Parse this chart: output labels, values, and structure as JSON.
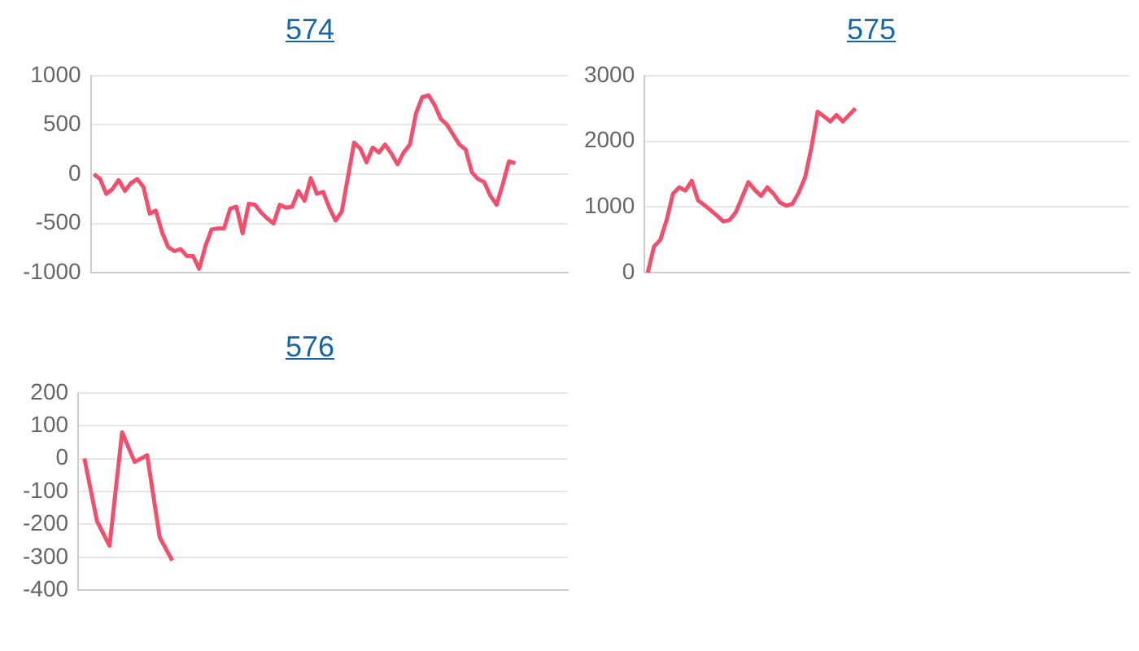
{
  "chart_data": [
    {
      "type": "line",
      "title": "574",
      "categories": [
        null,
        null,
        null,
        null,
        null,
        null,
        null,
        null,
        null,
        null,
        null,
        null,
        null,
        null,
        null,
        null,
        null,
        null,
        null,
        null,
        null,
        null,
        null,
        null,
        null,
        null,
        null,
        null,
        null,
        null,
        null,
        null,
        null,
        null,
        null,
        null,
        null,
        null,
        null,
        null,
        null,
        null,
        null,
        null,
        null,
        null,
        null,
        null,
        null,
        null,
        null,
        null,
        null,
        null,
        null,
        null,
        null,
        null,
        null,
        null,
        null,
        null,
        null,
        null,
        null,
        null,
        null,
        null,
        null,
        null,
        null,
        null,
        null,
        null,
        null,
        null,
        null
      ],
      "series": [
        {
          "color": "#f0506e",
          "values": [
            0,
            -50,
            -200,
            -150,
            -60,
            -170,
            -90,
            -50,
            -130,
            -400,
            -370,
            -590,
            -740,
            -780,
            -760,
            -830,
            -830,
            -960,
            -730,
            -560,
            -550,
            -550,
            -350,
            -330,
            -600,
            -300,
            -310,
            -390,
            -450,
            -500,
            -310,
            -340,
            -330,
            -170,
            -270,
            -40,
            -200,
            -180,
            -340,
            -470,
            -380,
            -30,
            320,
            260,
            120,
            270,
            220,
            300,
            210,
            100,
            220,
            300,
            620,
            780,
            800,
            700,
            560,
            500,
            400,
            300,
            250,
            20,
            -50,
            -80,
            -220,
            -310,
            -100,
            130,
            110,
            null,
            null,
            null,
            null,
            null,
            null,
            null,
            null
          ]
        }
      ],
      "ylim": [
        -1000,
        1000
      ],
      "yticks": [
        -1000,
        -500,
        0,
        500,
        1000
      ],
      "grid": "y",
      "tick_labels": "y",
      "marker": "none",
      "line_style": "solid"
    },
    {
      "type": "line",
      "title": "575",
      "categories": [
        null,
        null,
        null,
        null,
        null,
        null,
        null,
        null,
        null,
        null,
        null,
        null,
        null,
        null,
        null,
        null,
        null,
        null,
        null,
        null,
        null,
        null,
        null,
        null,
        null,
        null,
        null,
        null,
        null,
        null,
        null,
        null,
        null,
        null,
        null,
        null,
        null,
        null,
        null,
        null,
        null,
        null,
        null,
        null,
        null,
        null,
        null,
        null,
        null,
        null,
        null,
        null,
        null,
        null,
        null,
        null,
        null,
        null,
        null,
        null,
        null,
        null,
        null,
        null,
        null,
        null,
        null,
        null,
        null,
        null,
        null,
        null,
        null,
        null,
        null,
        null,
        null
      ],
      "series": [
        {
          "color": "#f0506e",
          "values": [
            0,
            400,
            500,
            800,
            1200,
            1300,
            1250,
            1400,
            1100,
            1030,
            950,
            870,
            780,
            800,
            920,
            1150,
            1380,
            1260,
            1170,
            1300,
            1200,
            1070,
            1020,
            1050,
            1220,
            1450,
            1900,
            2450,
            2380,
            2300,
            2400,
            2300,
            2400,
            2500,
            null,
            null,
            null,
            null,
            null,
            null,
            null,
            null,
            null,
            null,
            null,
            null,
            null,
            null,
            null,
            null,
            null,
            null,
            null,
            null,
            null,
            null,
            null,
            null,
            null,
            null,
            null,
            null,
            null,
            null,
            null,
            null,
            null,
            null,
            null,
            null,
            null,
            null,
            null,
            null,
            null,
            null,
            null
          ]
        }
      ],
      "ylim": [
        0,
        3000
      ],
      "yticks": [
        0,
        1000,
        2000,
        3000
      ],
      "grid": "y",
      "tick_labels": "y",
      "marker": "none",
      "line_style": "solid"
    },
    {
      "type": "line",
      "title": "576",
      "categories": [
        null,
        null,
        null,
        null,
        null,
        null,
        null,
        null,
        null,
        null,
        null,
        null,
        null,
        null,
        null,
        null,
        null,
        null,
        null,
        null,
        null,
        null,
        null,
        null,
        null,
        null,
        null,
        null,
        null,
        null,
        null,
        null,
        null,
        null,
        null,
        null,
        null,
        null,
        null
      ],
      "series": [
        {
          "color": "#f0506e",
          "values": [
            0,
            -190,
            -265,
            80,
            -10,
            10,
            -240,
            -310,
            null,
            null,
            null,
            null,
            null,
            null,
            null,
            null,
            null,
            null,
            null,
            null,
            null,
            null,
            null,
            null,
            null,
            null,
            null,
            null,
            null,
            null,
            null,
            null,
            null,
            null,
            null,
            null,
            null,
            null,
            null
          ]
        }
      ],
      "ylim": [
        -400,
        200
      ],
      "yticks": [
        -400,
        -300,
        -200,
        -100,
        0,
        100,
        200
      ],
      "grid": "y",
      "tick_labels": "y",
      "marker": "none",
      "line_style": "solid"
    }
  ]
}
